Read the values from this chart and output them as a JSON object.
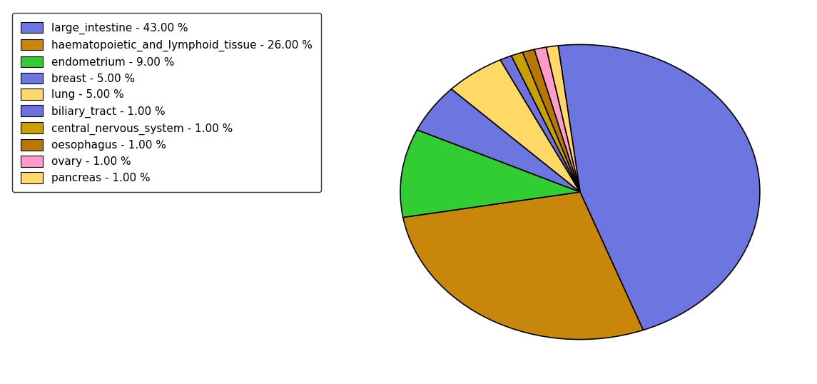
{
  "labels": [
    "large_intestine",
    "haematopoietic_and_lymphoid_tissue",
    "endometrium",
    "breast",
    "lung",
    "biliary_tract",
    "central_nervous_system",
    "oesophagus",
    "ovary",
    "pancreas"
  ],
  "values": [
    43,
    26,
    9,
    5,
    5,
    1,
    1,
    1,
    1,
    1
  ],
  "colors": [
    "#6d75e0",
    "#c8870a",
    "#32cd32",
    "#6d75e0",
    "#ffd966",
    "#7070e0",
    "#c8a000",
    "#b87800",
    "#ff9bc8",
    "#ffd966"
  ],
  "legend_labels": [
    "large_intestine - 43.00 %",
    "haematopoietic_and_lymphoid_tissue - 26.00 %",
    "endometrium - 9.00 %",
    "breast - 5.00 %",
    "lung - 5.00 %",
    "biliary_tract - 1.00 %",
    "central_nervous_system - 1.00 %",
    "oesophagus - 1.00 %",
    "ovary - 1.00 %",
    "pancreas - 1.00 %"
  ],
  "legend_colors": [
    "#6d75e0",
    "#c8870a",
    "#32cd32",
    "#6d75e0",
    "#ffd966",
    "#7070e0",
    "#c8a000",
    "#b87800",
    "#ff9bc8",
    "#ffd966"
  ],
  "startangle": 97,
  "background_color": "#ffffff"
}
